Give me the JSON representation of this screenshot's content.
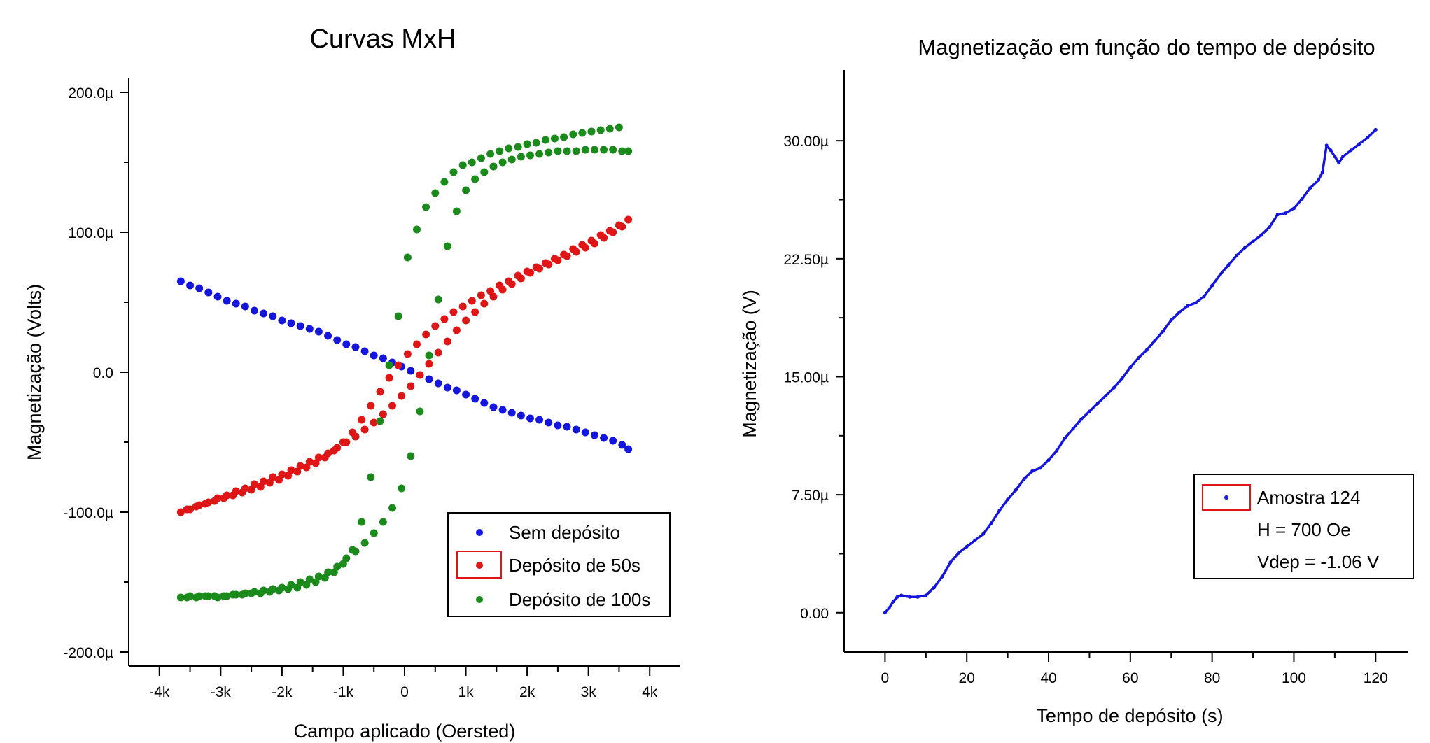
{
  "chart_data": [
    {
      "type": "scatter",
      "title": "Curvas MxH",
      "xlabel": "Campo aplicado (Oersted)",
      "ylabel": "Magnetização (Volts)",
      "xlim": [
        -4500,
        4500
      ],
      "ylim": [
        -210,
        210
      ],
      "x_ticks": [
        -4000,
        -3000,
        -2000,
        -1000,
        0,
        1000,
        2000,
        3000,
        4000
      ],
      "x_tick_labels": [
        "-4k",
        "-3k",
        "-2k",
        "-1k",
        "0",
        "1k",
        "2k",
        "3k",
        "4k"
      ],
      "y_ticks": [
        -200,
        -100,
        0,
        100,
        200
      ],
      "y_tick_labels": [
        "-200.0µ",
        "-100.0µ",
        "0.0",
        "100.0µ",
        "200.0µ"
      ],
      "y_unit": "µV",
      "grid": false,
      "legend_position": "bottom-right",
      "series": [
        {
          "name": "Sem depósito",
          "color": "#1515e0",
          "x": [
            -3650,
            -3500,
            -3350,
            -3200,
            -3050,
            -2900,
            -2750,
            -2600,
            -2450,
            -2300,
            -2150,
            -2000,
            -1850,
            -1700,
            -1550,
            -1400,
            -1250,
            -1100,
            -950,
            -800,
            -650,
            -500,
            -350,
            -200,
            -50,
            100,
            250,
            400,
            550,
            700,
            850,
            1000,
            1150,
            1300,
            1450,
            1600,
            1750,
            1900,
            2050,
            2200,
            2350,
            2500,
            2650,
            2800,
            2950,
            3100,
            3250,
            3400,
            3550,
            3650
          ],
          "y": [
            65,
            62,
            60,
            57,
            54,
            51,
            49,
            47,
            44,
            42,
            40,
            37,
            35,
            33,
            31,
            29,
            26,
            23,
            20,
            18,
            15,
            12,
            10,
            7,
            4,
            1,
            -2,
            -5,
            -8,
            -11,
            -13,
            -16,
            -19,
            -22,
            -25,
            -27,
            -29,
            -31,
            -33,
            -34,
            -36,
            -38,
            -39,
            -41,
            -43,
            -45,
            -47,
            -49,
            -52,
            -55
          ]
        },
        {
          "name": "Depósito de 50s",
          "color": "#e01515",
          "x": [
            -3650,
            -3500,
            -3350,
            -3200,
            -3050,
            -2900,
            -2750,
            -2600,
            -2450,
            -2300,
            -2150,
            -2000,
            -1850,
            -1700,
            -1550,
            -1400,
            -1250,
            -1100,
            -950,
            -800,
            -650,
            -500,
            -350,
            -200,
            -50,
            100,
            250,
            400,
            550,
            700,
            850,
            1000,
            1150,
            1300,
            1450,
            1600,
            1750,
            1900,
            2050,
            2200,
            2350,
            2500,
            2650,
            2800,
            2950,
            3100,
            3250,
            3400,
            3550,
            3650,
            3500,
            3350,
            3200,
            3050,
            2900,
            2750,
            2600,
            2450,
            2300,
            2150,
            2000,
            1850,
            1700,
            1550,
            1400,
            1250,
            1100,
            950,
            800,
            650,
            500,
            350,
            200,
            50,
            -100,
            -250,
            -400,
            -550,
            -700,
            -850,
            -1000,
            -1150,
            -1300,
            -1450,
            -1600,
            -1750,
            -1900,
            -2050,
            -2200,
            -2350,
            -2500,
            -2650,
            -2800,
            -2950,
            -3100,
            -3250,
            -3400,
            -3550
          ],
          "y": [
            -100,
            -98,
            -95,
            -93,
            -90,
            -88,
            -85,
            -83,
            -80,
            -78,
            -75,
            -73,
            -70,
            -67,
            -64,
            -61,
            -58,
            -54,
            -50,
            -46,
            -41,
            -36,
            -30,
            -24,
            -17,
            -10,
            -2,
            6,
            14,
            22,
            30,
            37,
            43,
            49,
            54,
            59,
            63,
            67,
            71,
            74,
            77,
            80,
            83,
            86,
            89,
            92,
            96,
            100,
            104,
            109,
            105,
            101,
            98,
            94,
            91,
            88,
            84,
            81,
            78,
            75,
            72,
            69,
            65,
            62,
            58,
            55,
            51,
            47,
            43,
            38,
            33,
            27,
            20,
            13,
            5,
            -4,
            -14,
            -24,
            -34,
            -43,
            -50,
            -56,
            -61,
            -65,
            -68,
            -71,
            -74,
            -77,
            -79,
            -82,
            -84,
            -86,
            -88,
            -90,
            -92,
            -94,
            -96,
            -98
          ]
        },
        {
          "name": "Depósito de 100s",
          "color": "#1a8a1a",
          "x": [
            -3650,
            -3500,
            -3350,
            -3200,
            -3050,
            -2900,
            -2750,
            -2600,
            -2450,
            -2300,
            -2150,
            -2000,
            -1850,
            -1700,
            -1550,
            -1400,
            -1250,
            -1100,
            -950,
            -800,
            -650,
            -500,
            -350,
            -200,
            -50,
            100,
            250,
            400,
            550,
            700,
            850,
            1000,
            1150,
            1300,
            1450,
            1600,
            1750,
            1900,
            2050,
            2200,
            2350,
            2500,
            2650,
            2800,
            2950,
            3100,
            3250,
            3400,
            3550,
            3650,
            3500,
            3350,
            3200,
            3050,
            2900,
            2750,
            2600,
            2450,
            2300,
            2150,
            2000,
            1850,
            1700,
            1550,
            1400,
            1250,
            1100,
            950,
            800,
            650,
            500,
            350,
            200,
            50,
            -100,
            -250,
            -400,
            -550,
            -700,
            -850,
            -1000,
            -1150,
            -1300,
            -1450,
            -1600,
            -1750,
            -1900,
            -2050,
            -2200,
            -2350,
            -2500,
            -2650,
            -2800,
            -2950,
            -3100,
            -3250,
            -3400,
            -3550
          ],
          "y": [
            -161,
            -160,
            -160,
            -160,
            -161,
            -160,
            -159,
            -158,
            -157,
            -156,
            -155,
            -154,
            -152,
            -150,
            -148,
            -146,
            -143,
            -139,
            -133,
            -128,
            -122,
            -115,
            -107,
            -97,
            -83,
            -60,
            -28,
            12,
            52,
            90,
            115,
            130,
            138,
            143,
            147,
            150,
            152,
            154,
            155,
            156,
            157,
            158,
            158,
            158,
            159,
            159,
            159,
            159,
            158,
            158,
            175,
            174,
            173,
            172,
            171,
            170,
            168,
            167,
            166,
            164,
            163,
            161,
            160,
            158,
            156,
            153,
            150,
            148,
            143,
            136,
            128,
            118,
            102,
            82,
            40,
            5,
            -35,
            -75,
            -107,
            -127,
            -137,
            -143,
            -147,
            -150,
            -152,
            -154,
            -155,
            -156,
            -157,
            -158,
            -158,
            -159,
            -159,
            -160,
            -160,
            -160,
            -161,
            -161
          ]
        }
      ]
    },
    {
      "type": "scatter",
      "title": "Magnetização em função do tempo de depósito",
      "xlabel": "Tempo de depósito (s)",
      "ylabel": "Magnetização (V)",
      "xlim": [
        -10,
        128
      ],
      "ylim": [
        -2.5,
        34.5
      ],
      "x_ticks": [
        0,
        20,
        40,
        60,
        80,
        100,
        120
      ],
      "x_tick_labels": [
        "0",
        "20",
        "40",
        "60",
        "80",
        "100",
        "120"
      ],
      "y_ticks": [
        0,
        7.5,
        15,
        22.5,
        30
      ],
      "y_tick_labels": [
        "0.00",
        "7.50µ",
        "15.00µ",
        "22.50µ",
        "30.00µ"
      ],
      "y_unit": "µV",
      "grid": false,
      "legend_position": "bottom-right",
      "legend_lines": [
        "Amostra 124",
        "H = 700 Oe",
        "Vdep = -1.06 V"
      ],
      "series": [
        {
          "name": "Amostra 124",
          "color": "#1515e0",
          "x": [
            0,
            1,
            2,
            3,
            4,
            6,
            8,
            10,
            12,
            14,
            16,
            18,
            20,
            22,
            24,
            26,
            28,
            30,
            32,
            34,
            36,
            38,
            40,
            42,
            44,
            46,
            48,
            50,
            52,
            54,
            56,
            58,
            60,
            62,
            64,
            66,
            68,
            70,
            72,
            74,
            76,
            78,
            80,
            82,
            84,
            86,
            88,
            90,
            92,
            94,
            96,
            98,
            100,
            102,
            104,
            106,
            107,
            108,
            109,
            110,
            111,
            112,
            114,
            116,
            118,
            120
          ],
          "y": [
            0.0,
            0.3,
            0.7,
            1.0,
            1.1,
            1.0,
            1.0,
            1.1,
            1.6,
            2.3,
            3.2,
            3.8,
            4.2,
            4.6,
            5.0,
            5.7,
            6.5,
            7.2,
            7.8,
            8.5,
            9.0,
            9.2,
            9.7,
            10.3,
            11.1,
            11.7,
            12.3,
            12.8,
            13.3,
            13.8,
            14.3,
            14.9,
            15.6,
            16.2,
            16.7,
            17.3,
            17.9,
            18.6,
            19.1,
            19.5,
            19.7,
            20.1,
            20.8,
            21.5,
            22.1,
            22.7,
            23.2,
            23.6,
            24.0,
            24.5,
            25.3,
            25.4,
            25.7,
            26.3,
            27.0,
            27.5,
            28.0,
            29.7,
            29.4,
            29.0,
            28.6,
            29.0,
            29.4,
            29.8,
            30.2,
            30.7
          ]
        }
      ]
    }
  ]
}
